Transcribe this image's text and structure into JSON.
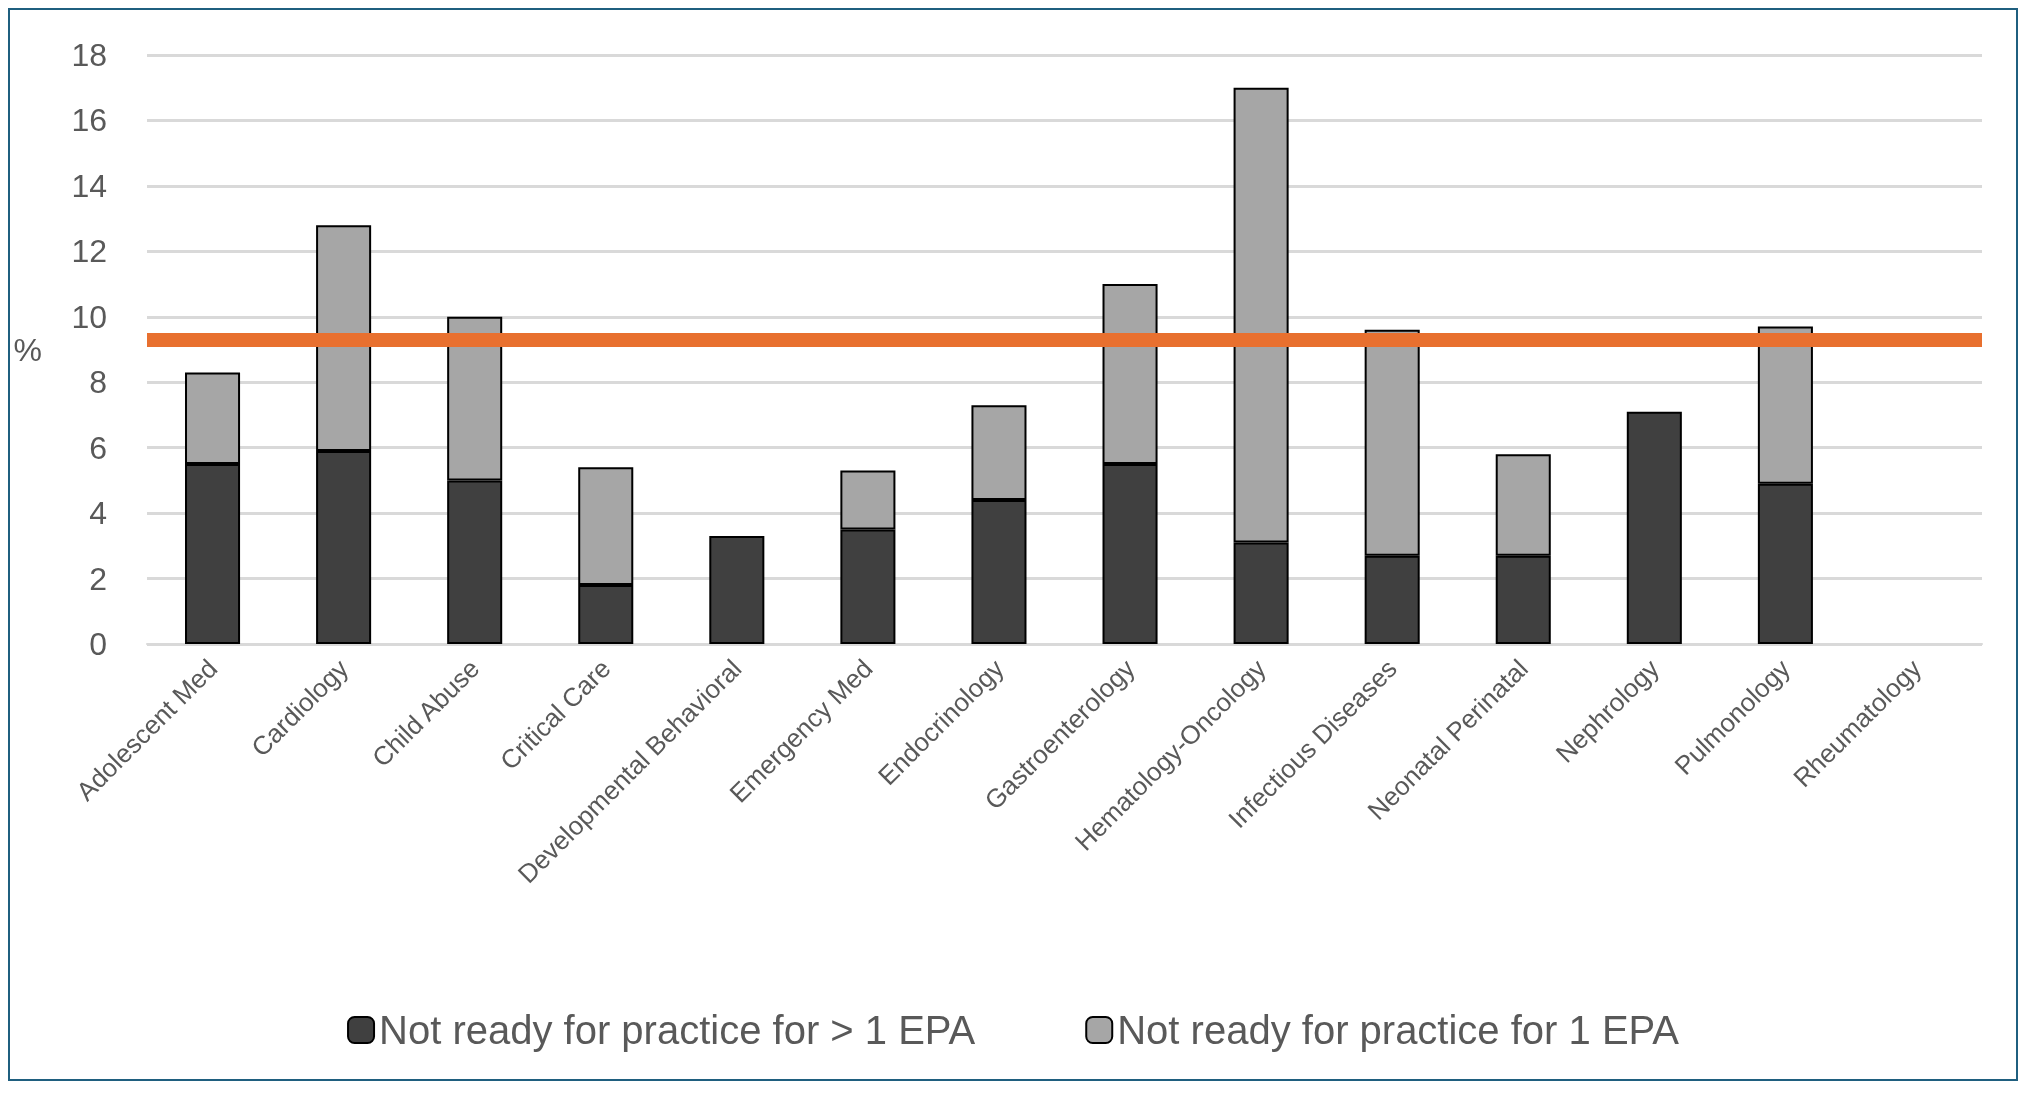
{
  "chart_data": {
    "type": "bar",
    "stacked": true,
    "ylabel": "%",
    "categories": [
      "Adolescent Med",
      "Cardiology",
      "Child Abuse",
      "Critical Care",
      "Developmental Behavioral",
      "Emergency Med",
      "Endocrinology",
      "Gastroenterology",
      "Hematology-Oncology",
      "Infectious Diseases",
      "Neonatal Perinatal",
      "Nephrology",
      "Pulmonology",
      "Rheumatology"
    ],
    "series": [
      {
        "name": "Not ready for practice for > 1 EPA",
        "color": "#404040",
        "values": [
          5.5,
          5.9,
          5.0,
          1.8,
          3.3,
          3.5,
          4.4,
          5.5,
          3.1,
          2.7,
          2.7,
          7.1,
          4.9,
          null
        ]
      },
      {
        "name": "Not ready for practice for 1 EPA",
        "color": "#a6a6a6",
        "values": [
          2.8,
          6.9,
          5.0,
          3.6,
          null,
          1.8,
          2.9,
          5.5,
          13.9,
          6.9,
          3.1,
          null,
          4.8,
          null
        ]
      }
    ],
    "ylim": [
      0,
      18
    ],
    "yticks": [
      0,
      2,
      4,
      6,
      8,
      10,
      12,
      14,
      16,
      18
    ],
    "grid": "y",
    "legend": "bottom",
    "ref_lines": [
      {
        "axis": "y",
        "value": 9.3,
        "color": "#e8702f"
      }
    ]
  }
}
